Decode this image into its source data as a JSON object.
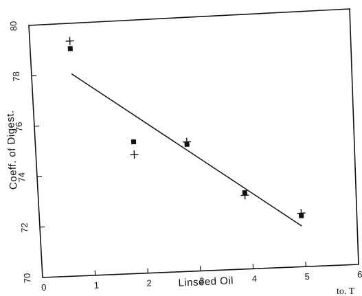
{
  "chart_data": {
    "type": "scatter",
    "xlabel": "Linseed Oil",
    "ylabel": "Coeff. of Digest.",
    "xlim": [
      0,
      6
    ],
    "ylim": [
      70,
      80
    ],
    "xticks": [
      "0",
      "1",
      "2",
      "3",
      "4",
      "5",
      "6"
    ],
    "yticks": [
      "70",
      "72",
      "74",
      "76",
      "78",
      "80"
    ],
    "grid": false,
    "series": [
      {
        "marker": "square",
        "points": [
          {
            "x": 0.75,
            "y": 79.0
          },
          {
            "x": 1.85,
            "y": 75.2
          },
          {
            "x": 2.85,
            "y": 75.0
          },
          {
            "x": 3.9,
            "y": 73.0
          },
          {
            "x": 4.95,
            "y": 72.0
          }
        ]
      },
      {
        "marker": "plus",
        "points": [
          {
            "x": 0.75,
            "y": 79.3
          },
          {
            "x": 1.85,
            "y": 74.7
          },
          {
            "x": 2.85,
            "y": 75.1
          },
          {
            "x": 3.9,
            "y": 72.9
          },
          {
            "x": 4.95,
            "y": 72.1
          }
        ]
      }
    ],
    "fit_line": {
      "x1": 0.75,
      "y1": 78.0,
      "x2": 4.95,
      "y2": 71.6
    },
    "colors": {
      "ink": "#111111",
      "background": "#ffffff"
    }
  },
  "page_fragment": "to. T"
}
